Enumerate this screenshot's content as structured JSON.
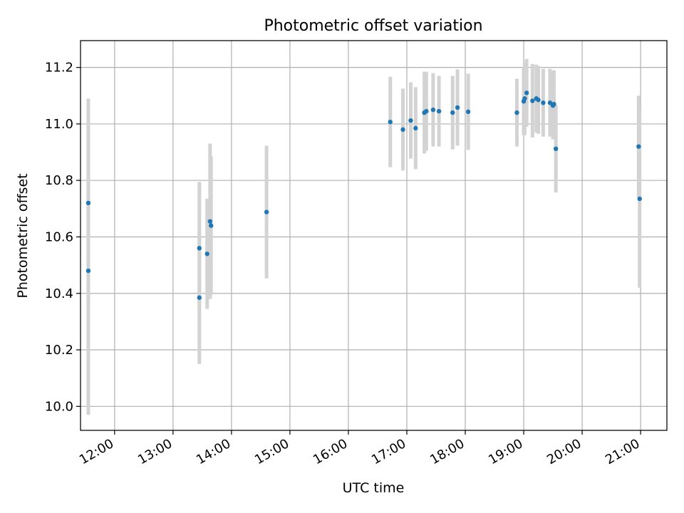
{
  "chart_data": {
    "type": "scatter",
    "title": "Photometric offset variation",
    "xlabel": "UTC time",
    "ylabel": "Photometric offset",
    "x_unit": "UTC time (HH:MM)",
    "xlim": [
      "11:25",
      "21:27"
    ],
    "ylim": [
      9.915,
      11.295
    ],
    "x_ticks": [
      "12:00",
      "13:00",
      "14:00",
      "15:00",
      "16:00",
      "17:00",
      "18:00",
      "19:00",
      "20:00",
      "21:00"
    ],
    "y_ticks": [
      "10.0",
      "10.2",
      "10.4",
      "10.6",
      "10.8",
      "11.0",
      "11.2"
    ],
    "grid": true,
    "colors": {
      "point": "#1f77b4",
      "errorbar": "#d3d3d3",
      "grid": "#b0b0b0"
    },
    "points": [
      {
        "x": "11:33",
        "y": 10.72,
        "err": 0.37
      },
      {
        "x": "11:33",
        "y": 10.48,
        "err": 0.51
      },
      {
        "x": "13:27",
        "y": 10.56,
        "err": 0.235
      },
      {
        "x": "13:27",
        "y": 10.385,
        "err": 0.235
      },
      {
        "x": "13:35",
        "y": 10.54,
        "err": 0.195
      },
      {
        "x": "13:38",
        "y": 10.655,
        "err": 0.275
      },
      {
        "x": "13:39",
        "y": 10.64,
        "err": 0.245
      },
      {
        "x": "14:36",
        "y": 10.688,
        "err": 0.235
      },
      {
        "x": "16:43",
        "y": 11.007,
        "err": 0.16
      },
      {
        "x": "16:56",
        "y": 10.98,
        "err": 0.145
      },
      {
        "x": "17:04",
        "y": 11.012,
        "err": 0.135
      },
      {
        "x": "17:09",
        "y": 10.985,
        "err": 0.145
      },
      {
        "x": "17:18",
        "y": 11.04,
        "err": 0.145
      },
      {
        "x": "17:20",
        "y": 11.045,
        "err": 0.14
      },
      {
        "x": "17:27",
        "y": 11.05,
        "err": 0.13
      },
      {
        "x": "17:33",
        "y": 11.045,
        "err": 0.125
      },
      {
        "x": "17:47",
        "y": 11.04,
        "err": 0.13
      },
      {
        "x": "17:52",
        "y": 11.058,
        "err": 0.135
      },
      {
        "x": "18:03",
        "y": 11.043,
        "err": 0.135
      },
      {
        "x": "18:53",
        "y": 11.04,
        "err": 0.12
      },
      {
        "x": "19:00",
        "y": 11.08,
        "err": 0.12
      },
      {
        "x": "19:01",
        "y": 11.09,
        "err": 0.13
      },
      {
        "x": "19:03",
        "y": 11.11,
        "err": 0.12
      },
      {
        "x": "19:09",
        "y": 11.082,
        "err": 0.13
      },
      {
        "x": "19:13",
        "y": 11.09,
        "err": 0.12
      },
      {
        "x": "19:15",
        "y": 11.085,
        "err": 0.12
      },
      {
        "x": "19:20",
        "y": 11.075,
        "err": 0.12
      },
      {
        "x": "19:27",
        "y": 11.075,
        "err": 0.12
      },
      {
        "x": "19:30",
        "y": 11.065,
        "err": 0.12
      },
      {
        "x": "19:31",
        "y": 11.07,
        "err": 0.12
      },
      {
        "x": "19:33",
        "y": 10.912,
        "err": 0.155
      },
      {
        "x": "20:58",
        "y": 10.92,
        "err": 0.18
      },
      {
        "x": "20:59",
        "y": 10.735,
        "err": 0.315
      }
    ]
  }
}
